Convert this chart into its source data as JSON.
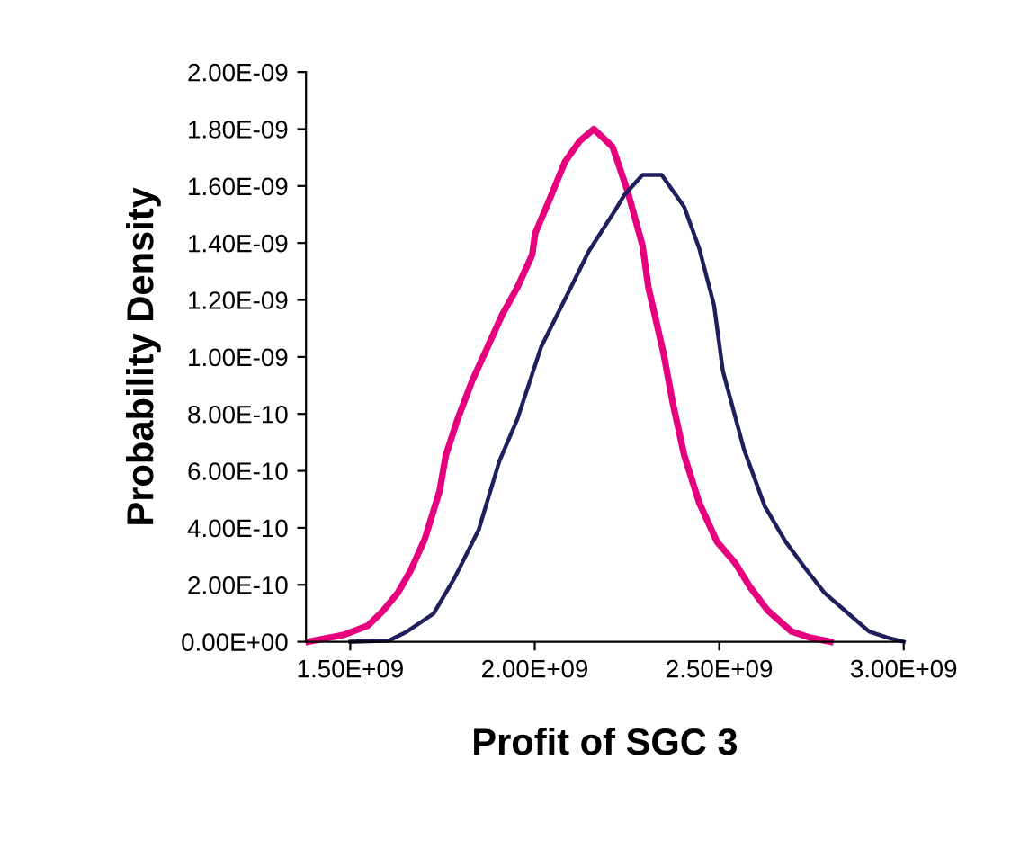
{
  "chart_data": {
    "type": "line",
    "xlabel": "Profit of SGC 3",
    "ylabel": "Probability Density",
    "xlim": [
      1380000000.0,
      3000000000.0
    ],
    "ylim": [
      0,
      2e-09
    ],
    "xticks": [
      {
        "value": 1500000000.0,
        "label": "1.50E+09"
      },
      {
        "value": 2000000000.0,
        "label": "2.00E+09"
      },
      {
        "value": 2500000000.0,
        "label": "2.50E+09"
      },
      {
        "value": 3000000000.0,
        "label": "3.00E+09"
      }
    ],
    "yticks": [
      {
        "value": 0,
        "label": "0.00E+00"
      },
      {
        "value": 2e-10,
        "label": "2.00E-10"
      },
      {
        "value": 4e-10,
        "label": "4.00E-10"
      },
      {
        "value": 6e-10,
        "label": "6.00E-10"
      },
      {
        "value": 8e-10,
        "label": "8.00E-10"
      },
      {
        "value": 1e-09,
        "label": "1.00E-09"
      },
      {
        "value": 1.2e-09,
        "label": "1.20E-09"
      },
      {
        "value": 1.4e-09,
        "label": "1.40E-09"
      },
      {
        "value": 1.6e-09,
        "label": "1.60E-09"
      },
      {
        "value": 1.8e-09,
        "label": "1.80E-09"
      },
      {
        "value": 2e-09,
        "label": "2.00E-09"
      }
    ],
    "grid": false,
    "legend": false,
    "marker": "none",
    "line_style": "solid",
    "series": [
      {
        "color": "#e6007e",
        "x": [
          1387000000.0,
          1484000000.0,
          1548000000.0,
          1589000000.0,
          1629000000.0,
          1662000000.0,
          1702000000.0,
          1742000000.0,
          1759000000.0,
          1791000000.0,
          1831000000.0,
          1872000000.0,
          1912000000.0,
          1953000000.0,
          1993000000.0,
          2001000000.0,
          2042000000.0,
          2082000000.0,
          2122000000.0,
          2160000000.0,
          2211000000.0,
          2252000000.0,
          2292000000.0,
          2308000000.0,
          2349000000.0,
          2373000000.0,
          2405000000.0,
          2446000000.0,
          2494000000.0,
          2543000000.0,
          2583000000.0,
          2632000000.0,
          2696000000.0,
          2745000000.0,
          2801000000.0
        ],
        "values": [
          0,
          2.5e-11,
          5.7e-11,
          1.09e-10,
          1.72e-10,
          2.46e-10,
          3.61e-10,
          5.29e-10,
          6.55e-10,
          7.82e-10,
          9.18e-10,
          1.034e-09,
          1.149e-09,
          1.244e-09,
          1.359e-09,
          1.433e-09,
          1.559e-09,
          1.685e-09,
          1.758e-09,
          1.8e-09,
          1.737e-09,
          1.58e-09,
          1.391e-09,
          1.244e-09,
          1.013e-09,
          8.45e-10,
          6.55e-10,
          4.87e-10,
          3.51e-10,
          2.77e-10,
          1.93e-10,
          1.09e-10,
          3.6e-11,
          1.5e-11,
          0
        ]
      },
      {
        "color": "#1f1f5c",
        "x": [
          1500000000.0,
          1605000000.0,
          1654000000.0,
          1726000000.0,
          1783000000.0,
          1848000000.0,
          1904000000.0,
          1953000000.0,
          2017000000.0,
          2098000000.0,
          2146000000.0,
          2219000000.0,
          2243000000.0,
          2292000000.0,
          2344000000.0,
          2405000000.0,
          2446000000.0,
          2486000000.0,
          2510000000.0,
          2567000000.0,
          2623000000.0,
          2680000000.0,
          2728000000.0,
          2785000000.0,
          2850000000.0,
          2906000000.0,
          2955000000.0,
          3000000000.0
        ],
        "values": [
          0,
          4e-12,
          3.6e-11,
          9.9e-11,
          2.25e-10,
          3.93e-10,
          6.34e-10,
          7.82e-10,
          1.034e-09,
          1.244e-09,
          1.37e-09,
          1.517e-09,
          1.569e-09,
          1.639e-09,
          1.639e-09,
          1.527e-09,
          1.38e-09,
          1.181e-09,
          9.5e-10,
          6.76e-10,
          4.77e-10,
          3.51e-10,
          2.67e-10,
          1.72e-10,
          9.9e-11,
          3.6e-11,
          1.5e-11,
          0
        ]
      }
    ]
  }
}
